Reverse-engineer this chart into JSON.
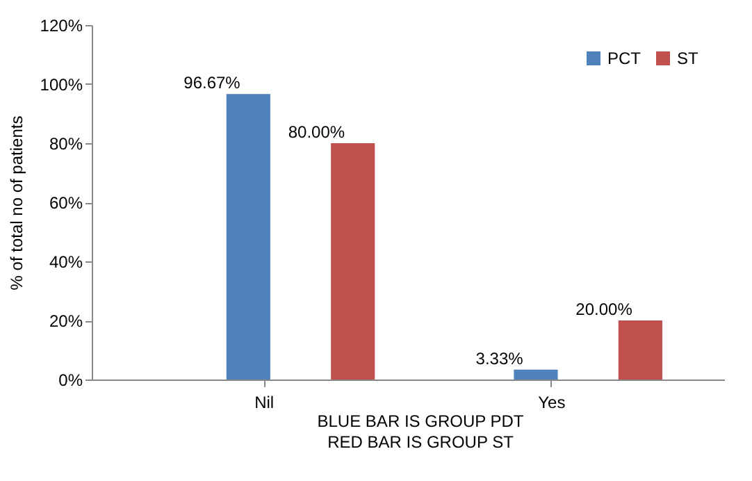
{
  "chart_data": {
    "type": "bar",
    "ylabel": "% of total no of patients",
    "categories": [
      "Nil",
      "Yes"
    ],
    "series": [
      {
        "name": "PCT",
        "color": "#4f81bd",
        "values": [
          96.67,
          3.33
        ],
        "value_labels": [
          "96.67%",
          "3.33%"
        ]
      },
      {
        "name": "ST",
        "color": "#c0504d",
        "values": [
          80,
          20
        ],
        "value_labels": [
          "80.00%",
          "20.00%"
        ]
      }
    ],
    "ylim": [
      0,
      120
    ],
    "yticks": [
      {
        "value": 0,
        "label": "0%"
      },
      {
        "value": 20,
        "label": "20%"
      },
      {
        "value": 40,
        "label": "40%"
      },
      {
        "value": 60,
        "label": "60%"
      },
      {
        "value": 80,
        "label": "80%"
      },
      {
        "value": 100,
        "label": "100%"
      },
      {
        "value": 120,
        "label": "120%"
      }
    ],
    "legend": "top right",
    "grid": false,
    "annotations": [
      "BLUE BAR IS GROUP PDT",
      "RED BAR IS GROUP ST"
    ]
  }
}
